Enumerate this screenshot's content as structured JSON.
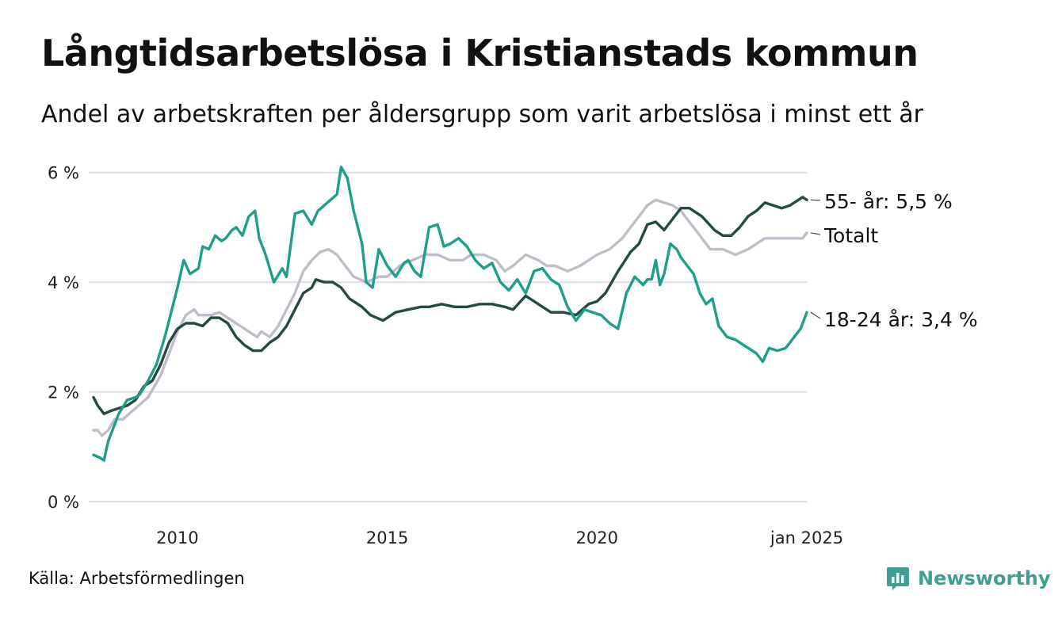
{
  "title": "Långtidsarbetslösa i Kristianstads kommun",
  "subtitle": "Andel av arbetskraften per åldersgrupp som varit arbetslösa i minst ett år",
  "source": "Källa: Arbetsförmedlingen",
  "brand": "Newsworthy",
  "colors": {
    "teal": "#1f9e8b",
    "dark": "#254a43",
    "gray": "#c1bcc9",
    "grid": "#dddde3",
    "brand": "#3f9f93"
  },
  "chart_data": {
    "type": "line",
    "ylim": [
      0,
      6.4
    ],
    "yticks": [
      0,
      2,
      4,
      6
    ],
    "ytick_labels": [
      "0 %",
      "2 %",
      "4 %",
      "6 %"
    ],
    "xlim": [
      2008.0,
      2025.0
    ],
    "xticks": [
      2010,
      2015,
      2020,
      2025
    ],
    "xtick_labels": [
      "2010",
      "2015",
      "2020",
      "jan 2025"
    ],
    "grid": true,
    "series": [
      {
        "name": "Totalt",
        "label": "Totalt",
        "color": "#c1bcc9",
        "x": [
          2008.0,
          2008.1,
          2008.2,
          2008.35,
          2008.5,
          2008.7,
          2009.0,
          2009.3,
          2009.6,
          2009.8,
          2010.0,
          2010.2,
          2010.4,
          2010.5,
          2010.8,
          2011.0,
          2011.3,
          2011.5,
          2011.7,
          2011.9,
          2012.0,
          2012.2,
          2012.4,
          2012.6,
          2012.8,
          2013.0,
          2013.2,
          2013.4,
          2013.6,
          2013.8,
          2014.0,
          2014.2,
          2014.5,
          2014.8,
          2015.0,
          2015.3,
          2015.6,
          2015.9,
          2016.2,
          2016.5,
          2016.8,
          2017.0,
          2017.3,
          2017.6,
          2017.8,
          2018.0,
          2018.3,
          2018.6,
          2018.8,
          2019.0,
          2019.3,
          2019.6,
          2019.8,
          2020.0,
          2020.3,
          2020.6,
          2020.8,
          2021.0,
          2021.2,
          2021.4,
          2021.6,
          2021.8,
          2022.0,
          2022.2,
          2022.4,
          2022.7,
          2023.0,
          2023.3,
          2023.6,
          2023.8,
          2024.0,
          2024.3,
          2024.6,
          2024.9,
          2025.0
        ],
        "y": [
          1.3,
          1.3,
          1.2,
          1.3,
          1.5,
          1.5,
          1.7,
          1.9,
          2.3,
          2.7,
          3.1,
          3.4,
          3.5,
          3.4,
          3.4,
          3.45,
          3.3,
          3.2,
          3.1,
          3.0,
          3.1,
          3.0,
          3.2,
          3.5,
          3.8,
          4.2,
          4.4,
          4.55,
          4.6,
          4.5,
          4.3,
          4.1,
          4.0,
          4.1,
          4.1,
          4.3,
          4.4,
          4.5,
          4.5,
          4.4,
          4.4,
          4.5,
          4.5,
          4.4,
          4.2,
          4.3,
          4.5,
          4.4,
          4.3,
          4.3,
          4.2,
          4.3,
          4.4,
          4.5,
          4.6,
          4.8,
          5.0,
          5.2,
          5.4,
          5.5,
          5.45,
          5.4,
          5.3,
          5.1,
          4.9,
          4.6,
          4.6,
          4.5,
          4.6,
          4.7,
          4.8,
          4.8,
          4.8,
          4.8,
          4.9
        ]
      },
      {
        "name": "55- år",
        "label": "55- år: 5,5 %",
        "color": "#254a43",
        "x": [
          2008.0,
          2008.1,
          2008.25,
          2008.4,
          2008.6,
          2008.8,
          2009.0,
          2009.2,
          2009.4,
          2009.6,
          2009.8,
          2010.0,
          2010.2,
          2010.4,
          2010.6,
          2010.8,
          2011.0,
          2011.2,
          2011.4,
          2011.6,
          2011.8,
          2012.0,
          2012.2,
          2012.4,
          2012.6,
          2012.8,
          2013.0,
          2013.2,
          2013.3,
          2013.5,
          2013.7,
          2013.9,
          2014.1,
          2014.4,
          2014.6,
          2014.9,
          2015.2,
          2015.5,
          2015.8,
          2016.0,
          2016.3,
          2016.6,
          2016.9,
          2017.2,
          2017.5,
          2017.8,
          2018.0,
          2018.3,
          2018.6,
          2018.9,
          2019.2,
          2019.5,
          2019.8,
          2020.0,
          2020.2,
          2020.5,
          2020.8,
          2021.0,
          2021.2,
          2021.4,
          2021.6,
          2021.8,
          2022.0,
          2022.2,
          2022.5,
          2022.8,
          2023.0,
          2023.2,
          2023.4,
          2023.6,
          2023.8,
          2024.0,
          2024.2,
          2024.4,
          2024.6,
          2024.8,
          2024.9,
          2025.0
        ],
        "y": [
          1.9,
          1.75,
          1.6,
          1.65,
          1.7,
          1.75,
          1.85,
          2.1,
          2.2,
          2.5,
          2.9,
          3.15,
          3.25,
          3.25,
          3.2,
          3.35,
          3.35,
          3.25,
          3.0,
          2.85,
          2.75,
          2.75,
          2.9,
          3.0,
          3.2,
          3.5,
          3.8,
          3.9,
          4.05,
          4.0,
          4.0,
          3.9,
          3.7,
          3.55,
          3.4,
          3.3,
          3.45,
          3.5,
          3.55,
          3.55,
          3.6,
          3.55,
          3.55,
          3.6,
          3.6,
          3.55,
          3.5,
          3.75,
          3.6,
          3.45,
          3.45,
          3.4,
          3.6,
          3.65,
          3.8,
          4.2,
          4.55,
          4.7,
          5.05,
          5.1,
          4.95,
          5.15,
          5.35,
          5.35,
          5.2,
          4.95,
          4.85,
          4.85,
          5.0,
          5.2,
          5.3,
          5.45,
          5.4,
          5.35,
          5.4,
          5.5,
          5.55,
          5.5
        ]
      },
      {
        "name": "18-24 år",
        "label": "18-24 år: 3,4 %",
        "color": "#1f9e8b",
        "x": [
          2008.0,
          2008.15,
          2008.25,
          2008.35,
          2008.5,
          2008.6,
          2008.8,
          2009.0,
          2009.1,
          2009.3,
          2009.5,
          2009.7,
          2009.9,
          2010.0,
          2010.15,
          2010.3,
          2010.5,
          2010.6,
          2010.75,
          2010.9,
          2011.05,
          2011.15,
          2011.3,
          2011.4,
          2011.55,
          2011.7,
          2011.85,
          2011.95,
          2012.1,
          2012.3,
          2012.5,
          2012.6,
          2012.8,
          2013.0,
          2013.2,
          2013.35,
          2013.5,
          2013.65,
          2013.8,
          2013.9,
          2014.05,
          2014.2,
          2014.4,
          2014.5,
          2014.65,
          2014.8,
          2015.0,
          2015.2,
          2015.4,
          2015.5,
          2015.65,
          2015.8,
          2016.0,
          2016.2,
          2016.35,
          2016.5,
          2016.7,
          2016.9,
          2017.1,
          2017.3,
          2017.5,
          2017.7,
          2017.9,
          2018.1,
          2018.3,
          2018.5,
          2018.7,
          2018.9,
          2019.1,
          2019.3,
          2019.5,
          2019.7,
          2019.9,
          2020.1,
          2020.3,
          2020.5,
          2020.7,
          2020.9,
          2021.1,
          2021.2,
          2021.3,
          2021.4,
          2021.5,
          2021.6,
          2021.75,
          2021.9,
          2022.0,
          2022.15,
          2022.3,
          2022.45,
          2022.6,
          2022.75,
          2022.9,
          2023.1,
          2023.3,
          2023.5,
          2023.7,
          2023.8,
          2023.95,
          2024.1,
          2024.3,
          2024.5,
          2024.7,
          2024.85,
          2024.95,
          2025.0
        ],
        "y": [
          0.85,
          0.8,
          0.75,
          1.1,
          1.4,
          1.6,
          1.85,
          1.9,
          1.95,
          2.2,
          2.5,
          3.0,
          3.6,
          3.9,
          4.4,
          4.15,
          4.25,
          4.65,
          4.6,
          4.85,
          4.75,
          4.8,
          4.95,
          5.0,
          4.85,
          5.2,
          5.3,
          4.8,
          4.5,
          4.0,
          4.25,
          4.1,
          5.25,
          5.3,
          5.05,
          5.3,
          5.4,
          5.5,
          5.6,
          6.1,
          5.9,
          5.3,
          4.7,
          4.0,
          3.9,
          4.6,
          4.3,
          4.1,
          4.35,
          4.4,
          4.2,
          4.1,
          5.0,
          5.05,
          4.65,
          4.7,
          4.8,
          4.65,
          4.4,
          4.25,
          4.35,
          4.0,
          3.85,
          4.05,
          3.8,
          4.2,
          4.25,
          4.05,
          3.95,
          3.55,
          3.3,
          3.5,
          3.45,
          3.4,
          3.25,
          3.15,
          3.8,
          4.1,
          3.95,
          4.05,
          4.05,
          4.4,
          3.95,
          4.15,
          4.7,
          4.6,
          4.45,
          4.3,
          4.15,
          3.8,
          3.6,
          3.7,
          3.2,
          3.0,
          2.95,
          2.85,
          2.75,
          2.7,
          2.55,
          2.8,
          2.75,
          2.8,
          3.0,
          3.15,
          3.35,
          3.45
        ]
      }
    ]
  }
}
